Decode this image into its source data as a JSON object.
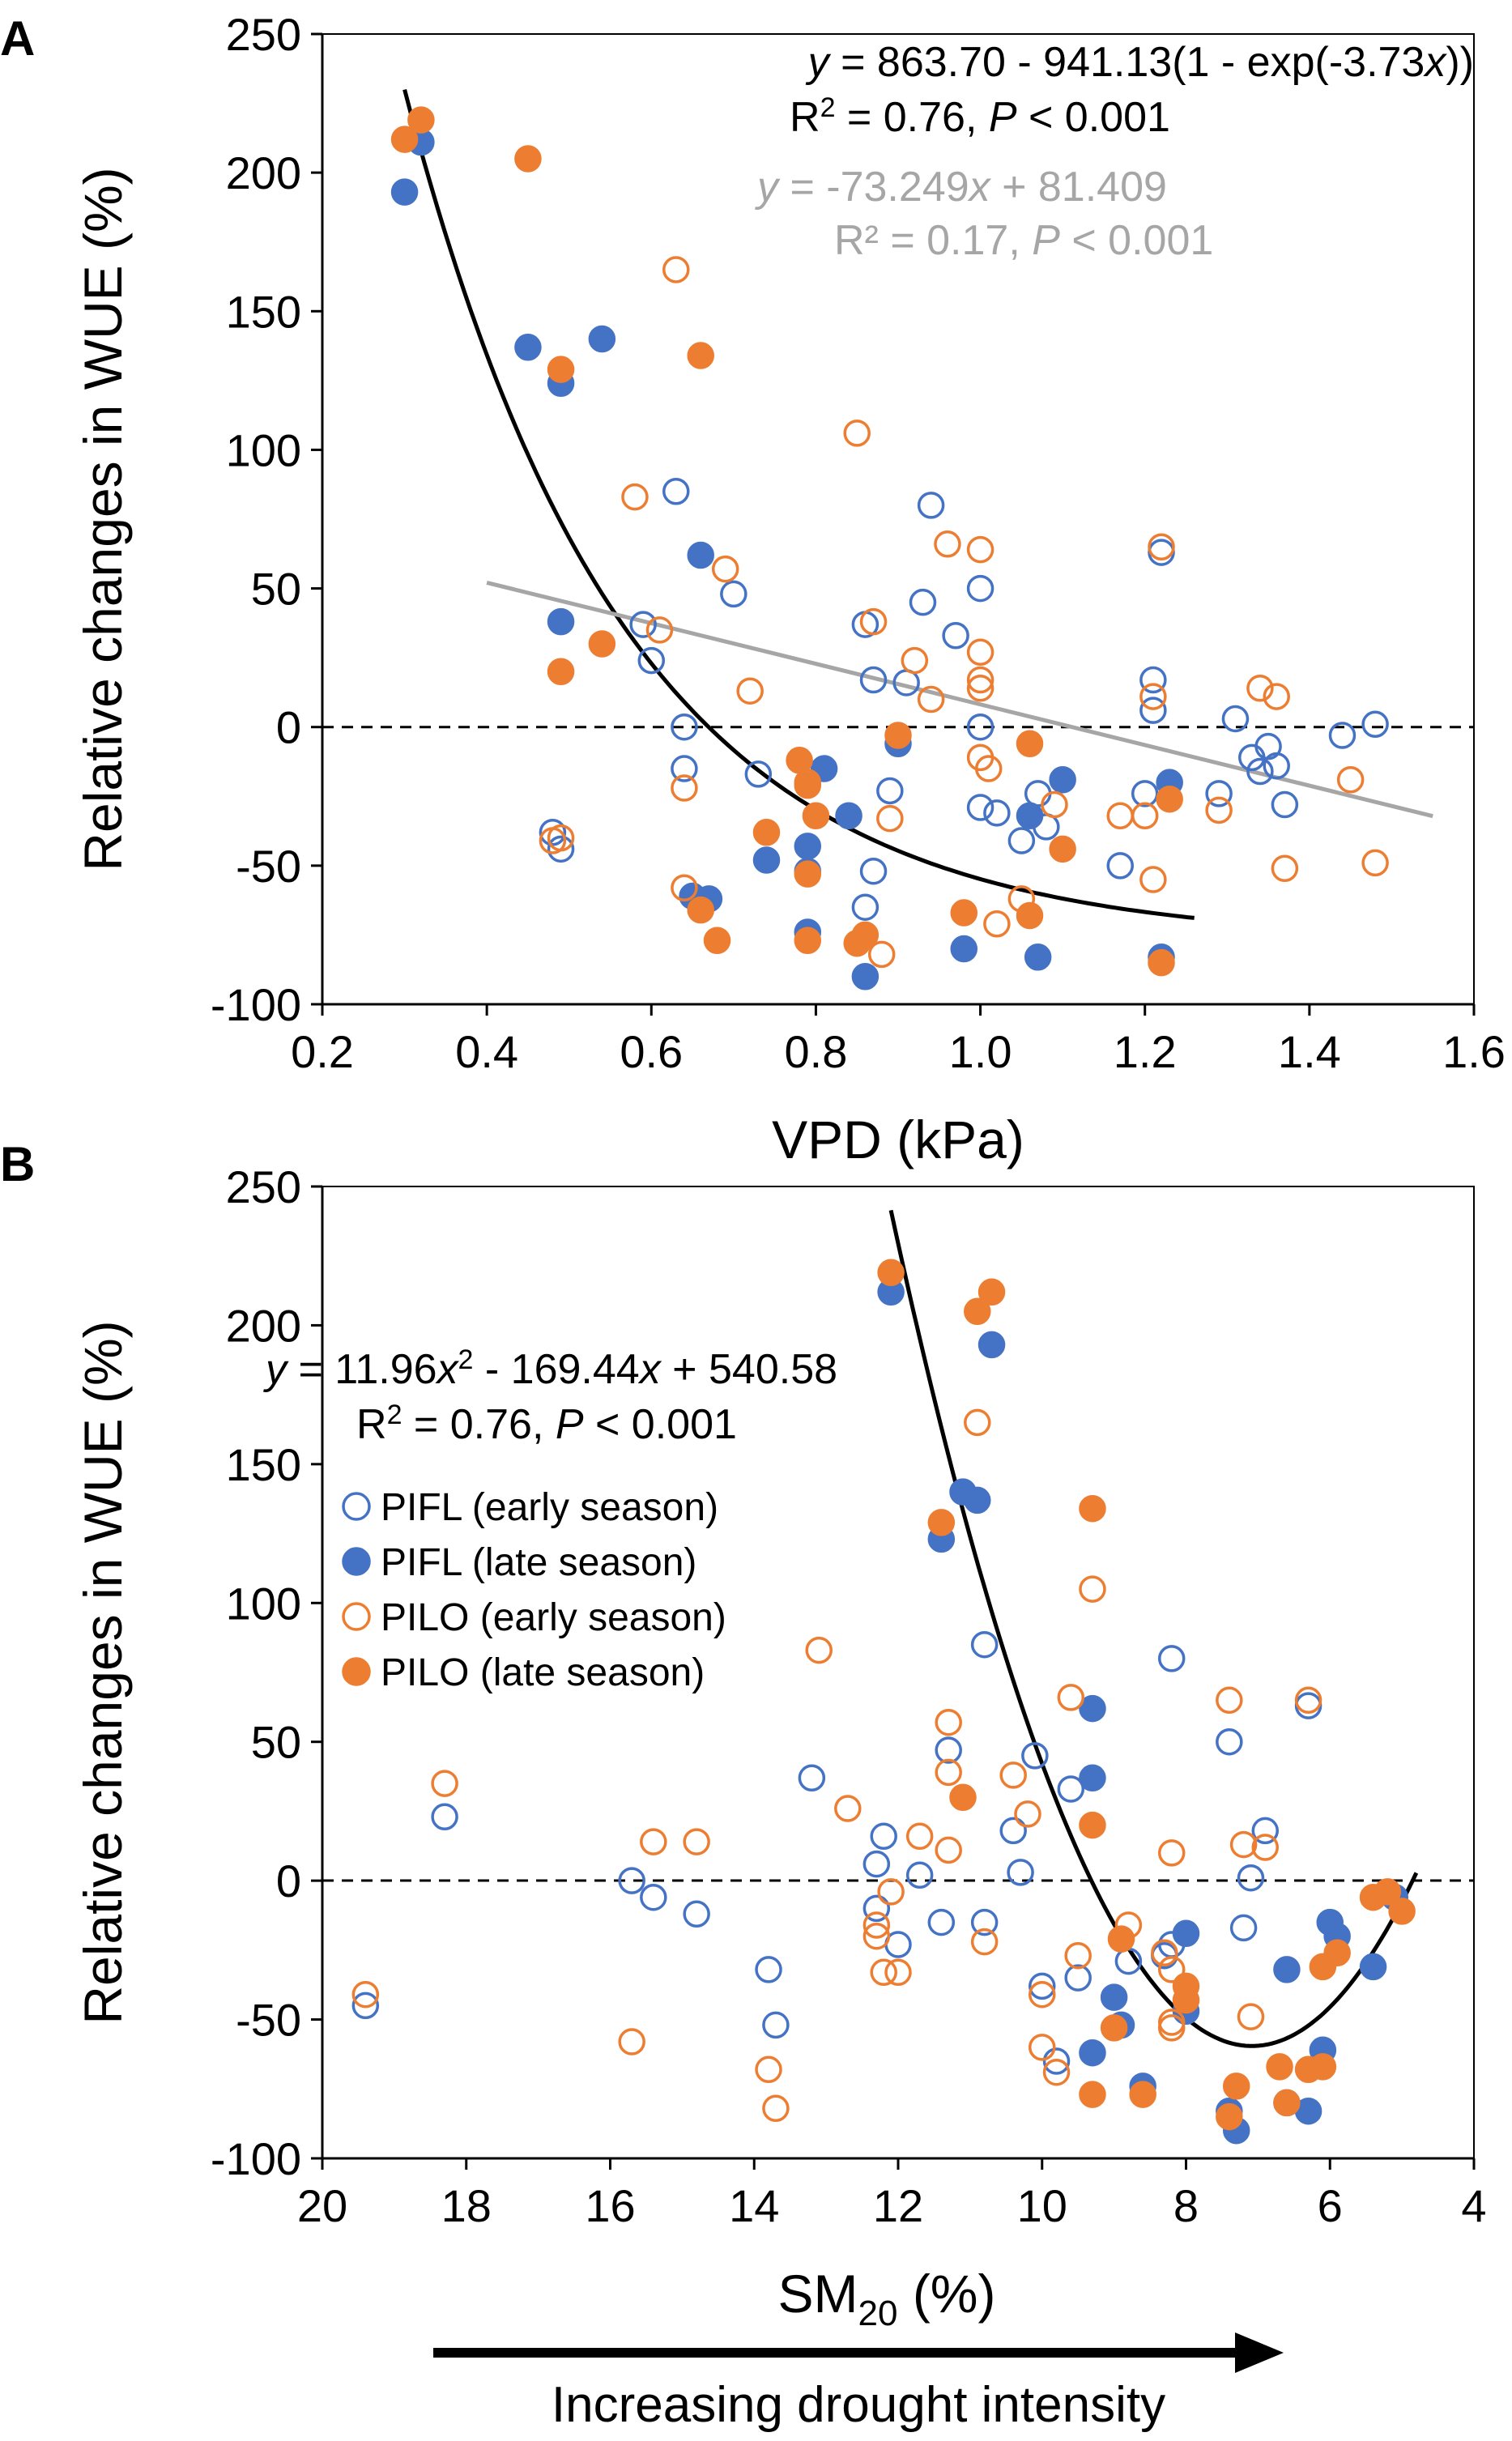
{
  "colors": {
    "pifl": "#4472c4",
    "pilo": "#ed7d31",
    "fit": "#000000",
    "linear": "#a6a6a6"
  },
  "chart_data": [
    {
      "panel": "A",
      "type": "scatter",
      "xlabel": "VPD (kPa)",
      "ylabel": "Relative changes in WUE (%)",
      "xlim": [
        0.2,
        1.6
      ],
      "ylim": [
        -100,
        250
      ],
      "xticks": [
        "0.2",
        "0.4",
        "0.6",
        "0.8",
        "1.0",
        "1.2",
        "1.4",
        "1.6"
      ],
      "yticks": [
        "-100",
        "-50",
        "0",
        "50",
        "100",
        "150",
        "200",
        "250"
      ],
      "equation1": {
        "y": "y",
        "text1": " = 863.70 - 941.13(1 - exp(-3.73",
        "x": "x",
        "text2": "))"
      },
      "r2_1": {
        "r": "R",
        "sup": "2",
        "text": " = 0.76, ",
        "p": "P",
        "ptext": " < 0.001"
      },
      "equation2": {
        "y": "y",
        "text1": " = -73.249",
        "x": "x",
        "text2": " + 81.409"
      },
      "r2_2": {
        "text": "R² = 0.17, ",
        "p": "P",
        "ptext": " < 0.001"
      },
      "series": [
        {
          "name": "PIFL (early season)",
          "color": "pifl",
          "filled": false,
          "points": [
            [
              0.48,
              -38
            ],
            [
              0.49,
              -44
            ],
            [
              0.59,
              37
            ],
            [
              0.6,
              24
            ],
            [
              0.63,
              85
            ],
            [
              0.64,
              0
            ],
            [
              0.64,
              -15
            ],
            [
              0.7,
              48
            ],
            [
              0.73,
              -17
            ],
            [
              0.86,
              37
            ],
            [
              0.87,
              17
            ],
            [
              0.87,
              -52
            ],
            [
              0.86,
              -65
            ],
            [
              0.89,
              -23
            ],
            [
              0.91,
              16
            ],
            [
              0.93,
              45
            ],
            [
              0.94,
              80
            ],
            [
              0.97,
              33
            ],
            [
              1.0,
              50
            ],
            [
              1.0,
              0
            ],
            [
              1.0,
              -29
            ],
            [
              1.02,
              -31
            ],
            [
              1.05,
              -41
            ],
            [
              1.07,
              -24
            ],
            [
              1.08,
              -36
            ],
            [
              1.17,
              -50
            ],
            [
              1.2,
              -24
            ],
            [
              1.21,
              17
            ],
            [
              1.21,
              6
            ],
            [
              1.22,
              63
            ],
            [
              1.29,
              -24
            ],
            [
              1.31,
              3
            ],
            [
              1.33,
              -11
            ],
            [
              1.34,
              -16
            ],
            [
              1.35,
              -7
            ],
            [
              1.36,
              -14
            ],
            [
              1.37,
              -28
            ],
            [
              1.44,
              -3
            ],
            [
              1.48,
              1
            ]
          ]
        },
        {
          "name": "PIFL (late season)",
          "color": "pifl",
          "filled": true,
          "points": [
            [
              0.3,
              193
            ],
            [
              0.32,
              211
            ],
            [
              0.45,
              137
            ],
            [
              0.49,
              124
            ],
            [
              0.54,
              140
            ],
            [
              0.49,
              38
            ],
            [
              0.66,
              62
            ],
            [
              0.65,
              -61
            ],
            [
              0.67,
              -62
            ],
            [
              0.74,
              -48
            ],
            [
              0.79,
              -43
            ],
            [
              0.79,
              -74
            ],
            [
              0.79,
              -52
            ],
            [
              0.81,
              -15
            ],
            [
              0.84,
              -32
            ],
            [
              0.86,
              -90
            ],
            [
              0.9,
              -6
            ],
            [
              0.98,
              -80
            ],
            [
              1.06,
              -32
            ],
            [
              1.07,
              -83
            ],
            [
              1.1,
              -19
            ],
            [
              1.22,
              -83
            ],
            [
              1.23,
              -20
            ]
          ]
        },
        {
          "name": "PILO (early season)",
          "color": "pilo",
          "filled": false,
          "points": [
            [
              0.48,
              -41
            ],
            [
              0.49,
              -40
            ],
            [
              0.58,
              83
            ],
            [
              0.61,
              35
            ],
            [
              0.64,
              -22
            ],
            [
              0.64,
              -58
            ],
            [
              0.63,
              165
            ],
            [
              0.69,
              57
            ],
            [
              0.72,
              13
            ],
            [
              0.79,
              -20
            ],
            [
              0.85,
              106
            ],
            [
              0.87,
              38
            ],
            [
              0.88,
              -82
            ],
            [
              0.89,
              -33
            ],
            [
              0.92,
              24
            ],
            [
              0.94,
              10
            ],
            [
              0.96,
              66
            ],
            [
              1.0,
              64
            ],
            [
              1.0,
              27
            ],
            [
              1.0,
              17
            ],
            [
              1.0,
              14
            ],
            [
              1.0,
              -11
            ],
            [
              1.01,
              -15
            ],
            [
              1.02,
              -71
            ],
            [
              1.05,
              -62
            ],
            [
              1.09,
              -28
            ],
            [
              1.17,
              -32
            ],
            [
              1.2,
              -32
            ],
            [
              1.21,
              -55
            ],
            [
              1.21,
              11
            ],
            [
              1.22,
              65
            ],
            [
              1.29,
              -30
            ],
            [
              1.34,
              14
            ],
            [
              1.36,
              11
            ],
            [
              1.37,
              -51
            ],
            [
              1.45,
              -19
            ],
            [
              1.48,
              -49
            ]
          ]
        },
        {
          "name": "PILO (late season)",
          "color": "pilo",
          "filled": true,
          "points": [
            [
              0.3,
              212
            ],
            [
              0.32,
              219
            ],
            [
              0.45,
              205
            ],
            [
              0.49,
              129
            ],
            [
              0.66,
              134
            ],
            [
              0.49,
              20
            ],
            [
              0.54,
              30
            ],
            [
              0.66,
              -66
            ],
            [
              0.68,
              -77
            ],
            [
              0.74,
              -38
            ],
            [
              0.78,
              -12
            ],
            [
              0.79,
              -21
            ],
            [
              0.79,
              -53
            ],
            [
              0.79,
              -77
            ],
            [
              0.8,
              -32
            ],
            [
              0.85,
              -78
            ],
            [
              0.86,
              -75
            ],
            [
              0.9,
              -3
            ],
            [
              0.98,
              -67
            ],
            [
              1.06,
              -68
            ],
            [
              1.06,
              -6
            ],
            [
              1.1,
              -44
            ],
            [
              1.22,
              -85
            ],
            [
              1.23,
              -26
            ]
          ]
        }
      ],
      "fit_exp": {
        "a": 863.7,
        "b": 941.13,
        "k": 3.73,
        "xrange": [
          0.3,
          1.26
        ]
      },
      "fit_linear": {
        "slope": -73.249,
        "intercept": 81.409,
        "xrange": [
          0.4,
          1.55
        ]
      }
    },
    {
      "panel": "B",
      "type": "scatter",
      "xlabel": {
        "main": "SM",
        "sub": "20",
        "unit": " (%)"
      },
      "ylabel": "Relative changes in WUE (%)",
      "xlim": [
        20,
        4
      ],
      "ylim": [
        -100,
        250
      ],
      "xticks": [
        "20",
        "18",
        "16",
        "14",
        "12",
        "10",
        "8",
        "6",
        "4"
      ],
      "yticks": [
        "-100",
        "-50",
        "0",
        "50",
        "100",
        "150",
        "200",
        "250"
      ],
      "equation": {
        "y": "y",
        "t1": " = 11.96",
        "x1": "x",
        "sup": "2",
        "t2": " - 169.44",
        "x2": "x",
        "t3": " + 540.58"
      },
      "r2": {
        "r": "R",
        "sup": "2",
        "text": " = 0.76, ",
        "p": "P",
        "ptext": " < 0.001"
      },
      "legend": [
        "PIFL (early season)",
        "PIFL (late season)",
        "PILO (early season)",
        "PILO (late season)"
      ],
      "arrow_label": "Increasing drought intensity",
      "series": [
        {
          "name": "PIFL (early season)",
          "color": "pifl",
          "filled": false,
          "points": [
            [
              19.4,
              -45
            ],
            [
              18.3,
              23
            ],
            [
              15.7,
              0
            ],
            [
              15.4,
              -6
            ],
            [
              14.8,
              -12
            ],
            [
              13.8,
              -32
            ],
            [
              13.7,
              -52
            ],
            [
              13.2,
              37
            ],
            [
              12.3,
              6
            ],
            [
              12.3,
              -10
            ],
            [
              12.2,
              16
            ],
            [
              12.0,
              -23
            ],
            [
              11.7,
              2
            ],
            [
              11.4,
              -15
            ],
            [
              11.3,
              47
            ],
            [
              10.8,
              85
            ],
            [
              10.8,
              -15
            ],
            [
              10.4,
              18
            ],
            [
              10.3,
              3
            ],
            [
              10.1,
              45
            ],
            [
              10.0,
              -38
            ],
            [
              9.8,
              -65
            ],
            [
              9.6,
              33
            ],
            [
              9.5,
              -35
            ],
            [
              8.8,
              -29
            ],
            [
              8.3,
              -27
            ],
            [
              8.2,
              -23
            ],
            [
              8.2,
              80
            ],
            [
              7.4,
              50
            ],
            [
              7.2,
              -17
            ],
            [
              7.1,
              1
            ],
            [
              6.9,
              18
            ],
            [
              6.3,
              63
            ]
          ]
        },
        {
          "name": "PIFL (late season)",
          "color": "pifl",
          "filled": true,
          "points": [
            [
              12.1,
              212
            ],
            [
              11.4,
              123
            ],
            [
              11.1,
              140
            ],
            [
              10.9,
              137
            ],
            [
              10.7,
              193
            ],
            [
              9.3,
              62
            ],
            [
              9.3,
              37
            ],
            [
              9.3,
              -62
            ],
            [
              9.0,
              -42
            ],
            [
              8.9,
              -52
            ],
            [
              8.6,
              -74
            ],
            [
              8.0,
              -19
            ],
            [
              8.0,
              -47
            ],
            [
              7.4,
              -83
            ],
            [
              7.3,
              -90
            ],
            [
              6.6,
              -32
            ],
            [
              6.6,
              -80
            ],
            [
              6.3,
              -83
            ],
            [
              6.1,
              -61
            ],
            [
              6.0,
              -15
            ],
            [
              5.9,
              -20
            ],
            [
              5.4,
              -31
            ],
            [
              5.1,
              -6
            ]
          ]
        },
        {
          "name": "PILO (early season)",
          "color": "pilo",
          "filled": false,
          "points": [
            [
              19.4,
              -41
            ],
            [
              18.3,
              35
            ],
            [
              15.7,
              -58
            ],
            [
              15.4,
              14
            ],
            [
              14.8,
              14
            ],
            [
              13.8,
              -68
            ],
            [
              13.7,
              -82
            ],
            [
              13.1,
              83
            ],
            [
              12.7,
              26
            ],
            [
              12.3,
              -16
            ],
            [
              12.3,
              -20
            ],
            [
              12.2,
              -33
            ],
            [
              12.0,
              -33
            ],
            [
              12.1,
              -4
            ],
            [
              11.7,
              16
            ],
            [
              11.3,
              57
            ],
            [
              11.3,
              39
            ],
            [
              11.3,
              11
            ],
            [
              10.9,
              165
            ],
            [
              10.8,
              -22
            ],
            [
              10.4,
              38
            ],
            [
              10.2,
              24
            ],
            [
              10.0,
              -41
            ],
            [
              10.0,
              -60
            ],
            [
              9.8,
              -69
            ],
            [
              9.6,
              66
            ],
            [
              9.5,
              -27
            ],
            [
              9.3,
              105
            ],
            [
              8.8,
              -16
            ],
            [
              8.3,
              -26
            ],
            [
              8.2,
              -32
            ],
            [
              8.2,
              -51
            ],
            [
              8.2,
              -53
            ],
            [
              8.2,
              10
            ],
            [
              7.4,
              65
            ],
            [
              7.2,
              13
            ],
            [
              7.1,
              -49
            ],
            [
              6.9,
              12
            ],
            [
              6.3,
              65
            ]
          ]
        },
        {
          "name": "PILO (late season)",
          "color": "pilo",
          "filled": true,
          "points": [
            [
              12.1,
              219
            ],
            [
              11.4,
              129
            ],
            [
              11.1,
              30
            ],
            [
              10.9,
              205
            ],
            [
              10.7,
              212
            ],
            [
              9.3,
              134
            ],
            [
              9.3,
              20
            ],
            [
              9.3,
              -77
            ],
            [
              9.0,
              -53
            ],
            [
              8.9,
              -21
            ],
            [
              8.6,
              -77
            ],
            [
              8.0,
              -38
            ],
            [
              8.0,
              -43
            ],
            [
              7.4,
              -85
            ],
            [
              7.3,
              -74
            ],
            [
              6.7,
              -67
            ],
            [
              6.6,
              -80
            ],
            [
              6.3,
              -68
            ],
            [
              6.1,
              -67
            ],
            [
              6.1,
              -31
            ],
            [
              5.9,
              -26
            ],
            [
              5.4,
              -6
            ],
            [
              5.2,
              -4
            ],
            [
              5.0,
              -11
            ]
          ]
        }
      ],
      "fit_quad": {
        "a": 11.96,
        "b": -169.44,
        "c": 540.58,
        "xrange": [
          12.1,
          4.8
        ]
      }
    }
  ]
}
